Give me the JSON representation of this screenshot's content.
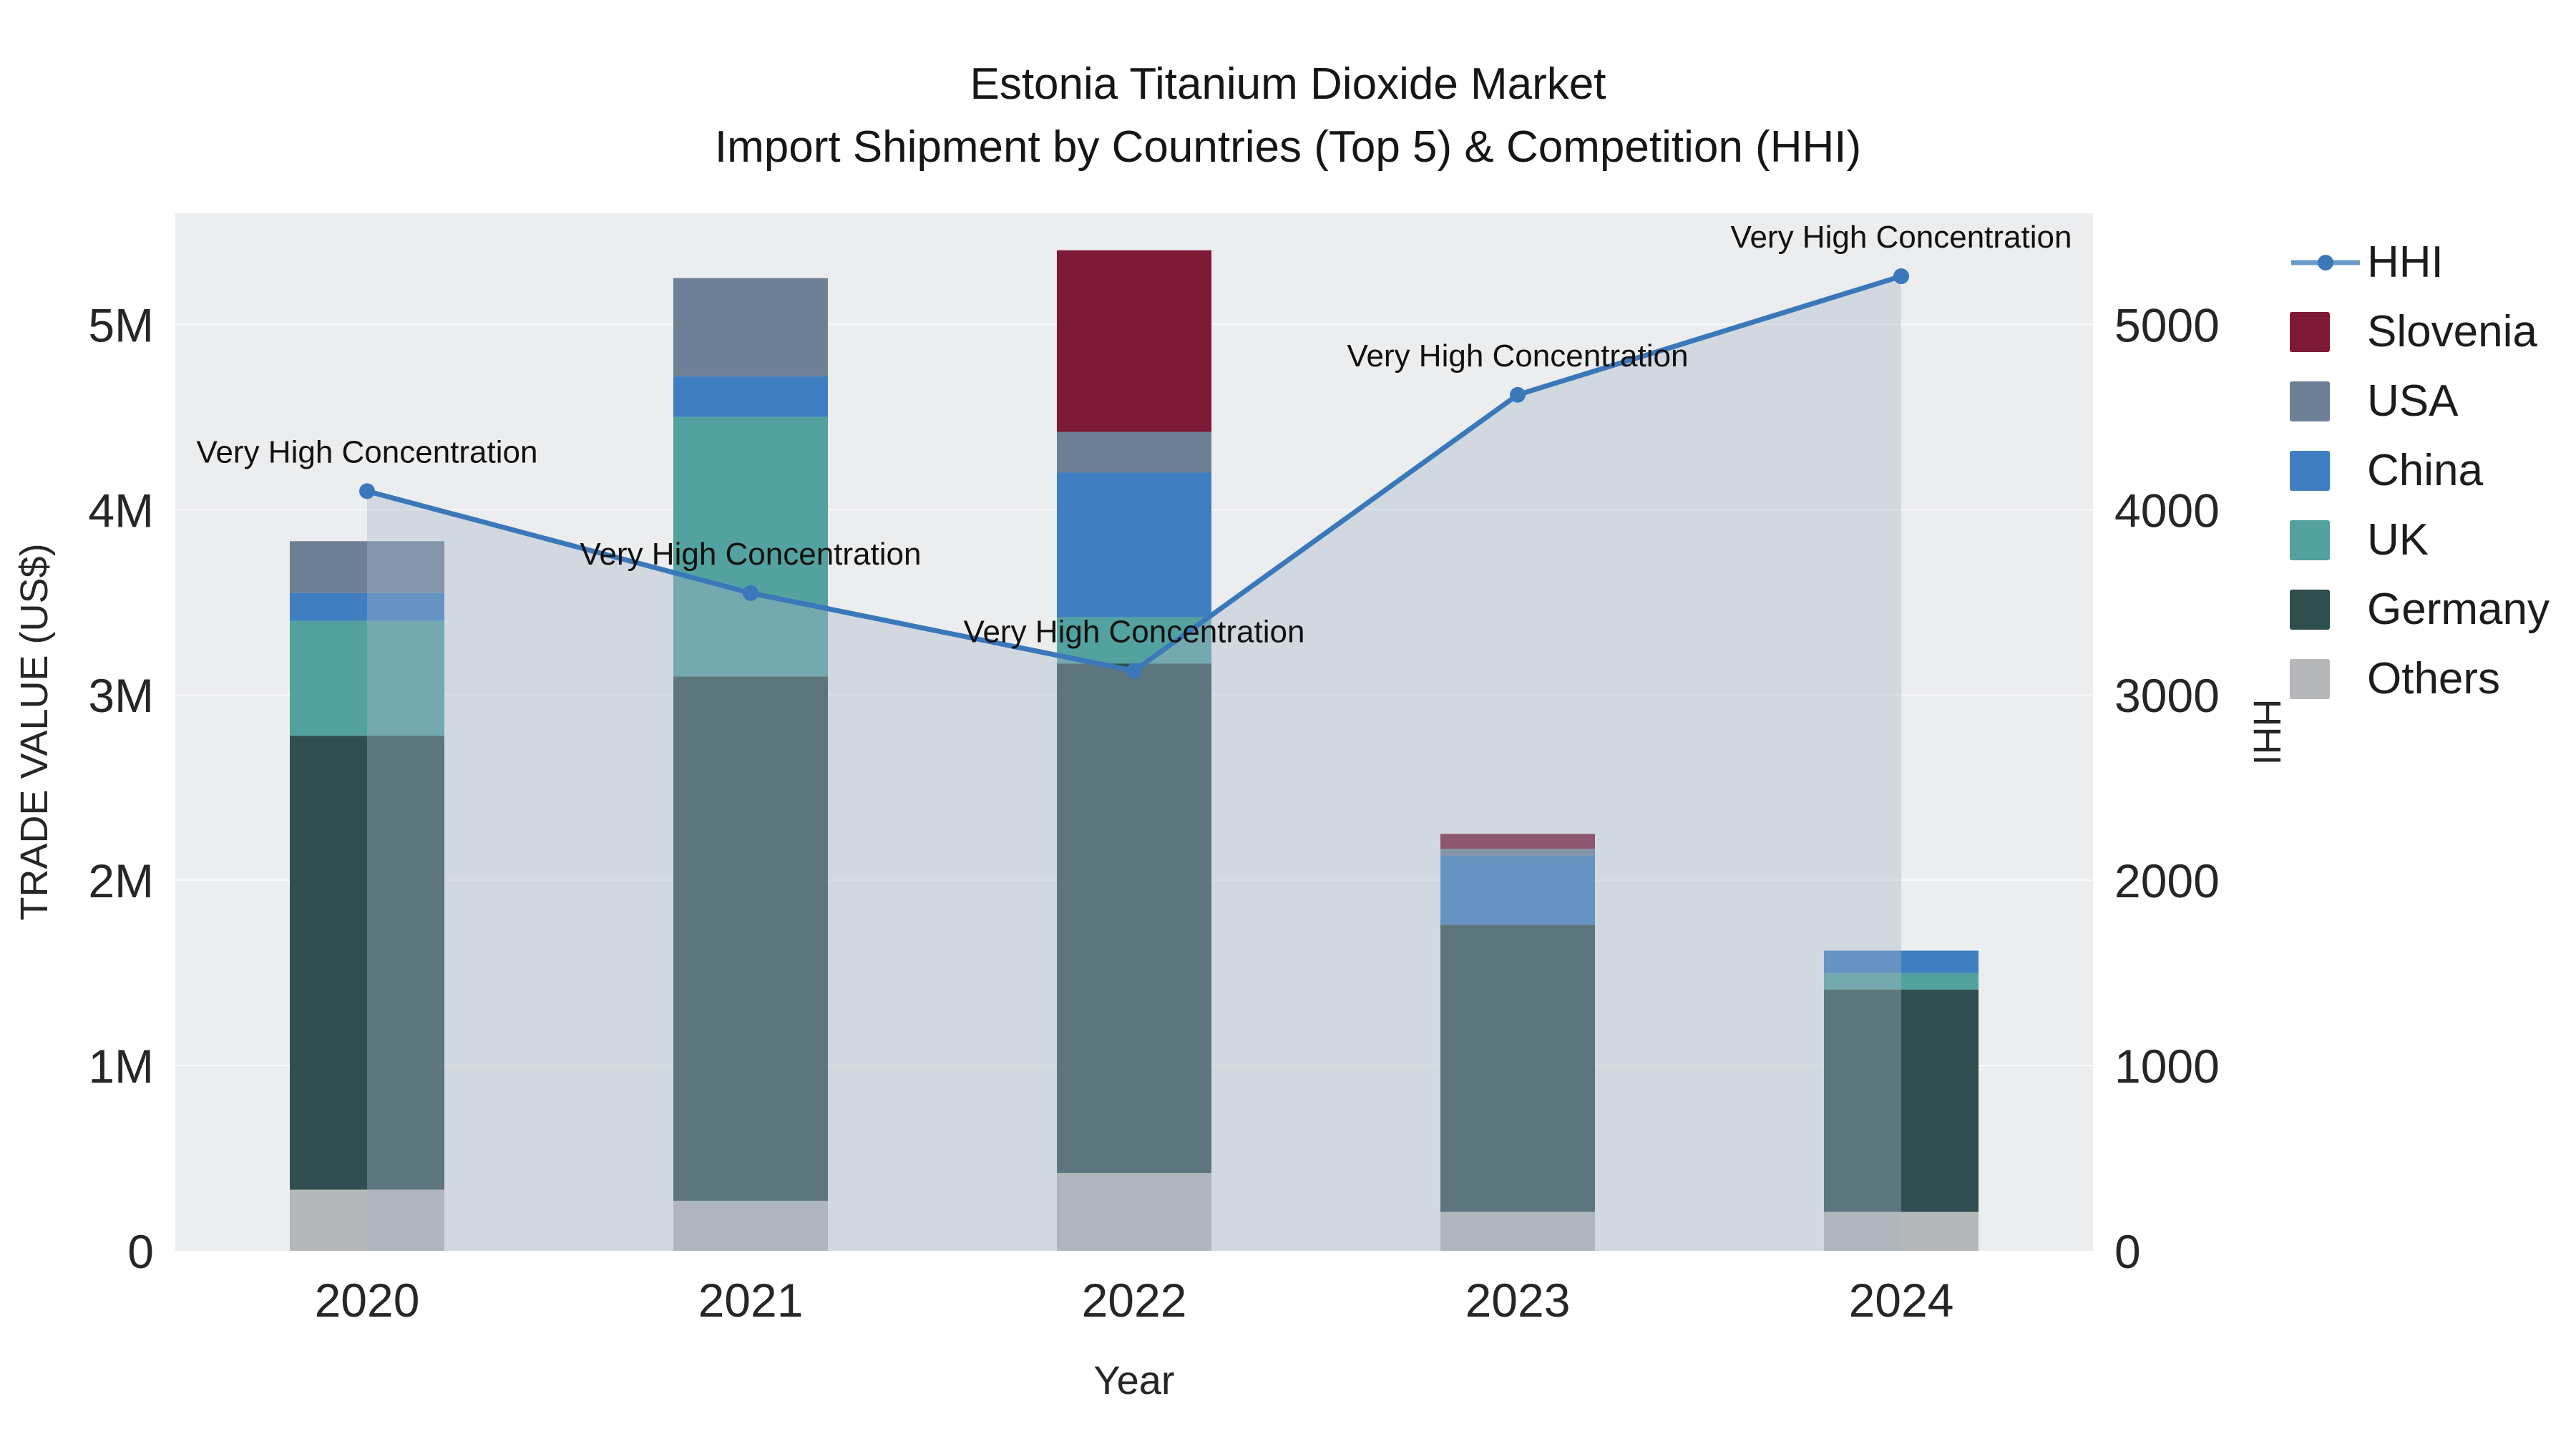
{
  "title": {
    "line1": "Estonia Titanium Dioxide Market",
    "line2": "Import Shipment by Countries (Top 5) & Competition (HHI)"
  },
  "chart_data": {
    "type": "bar",
    "subtype": "stacked-bars-with-hhi-line-overlay",
    "title": "Estonia Titanium Dioxide Market Import Shipment by Countries (Top 5) & Competition (HHI)",
    "xlabel": "Year",
    "ylabel_left": "TRADE VALUE (US$)",
    "ylabel_right": "HHI",
    "categories": [
      "2020",
      "2021",
      "2022",
      "2023",
      "2024"
    ],
    "ylim_left": [
      0,
      5600000
    ],
    "ylim_right": [
      0,
      5600
    ],
    "left_tick_labels": [
      "0",
      "1M",
      "2M",
      "3M",
      "4M",
      "5M"
    ],
    "left_tick_values": [
      0,
      1000000,
      2000000,
      3000000,
      4000000,
      5000000
    ],
    "right_tick_labels": [
      "0",
      "1000",
      "2000",
      "3000",
      "4000",
      "5000"
    ],
    "right_tick_values": [
      0,
      1000,
      2000,
      3000,
      4000,
      5000
    ],
    "grid": true,
    "legend_position": "right",
    "legend_order": [
      "HHI",
      "Slovenia",
      "USA",
      "China",
      "UK",
      "Germany",
      "Others"
    ],
    "series": [
      {
        "name": "Others",
        "color": "#b5b7b9",
        "values": [
          330000,
          270000,
          420000,
          210000,
          210000
        ]
      },
      {
        "name": "Germany",
        "color": "#2f4f4f",
        "values": [
          2450000,
          2830000,
          2750000,
          1550000,
          1200000
        ]
      },
      {
        "name": "UK",
        "color": "#53a2a0",
        "values": [
          620000,
          1400000,
          250000,
          0,
          90000
        ]
      },
      {
        "name": "China",
        "color": "#3f7fc1",
        "values": [
          150000,
          220000,
          780000,
          370000,
          120000
        ]
      },
      {
        "name": "USA",
        "color": "#6e8096",
        "values": [
          280000,
          530000,
          220000,
          40000,
          0
        ]
      },
      {
        "name": "Slovenia",
        "color": "#7d1a38",
        "values": [
          0,
          0,
          980000,
          80000,
          0
        ]
      }
    ],
    "hhi": {
      "name": "HHI",
      "line_color": "#3a78ba",
      "area_color": "#a9b6c9",
      "area_opacity": 0.38,
      "values": [
        4100,
        3550,
        3130,
        4620,
        5260
      ],
      "annotation": "Very High Concentration"
    },
    "colors": {
      "plot_bg": "#ebedef",
      "grid": "#f9fafb",
      "text": "#262626"
    }
  }
}
